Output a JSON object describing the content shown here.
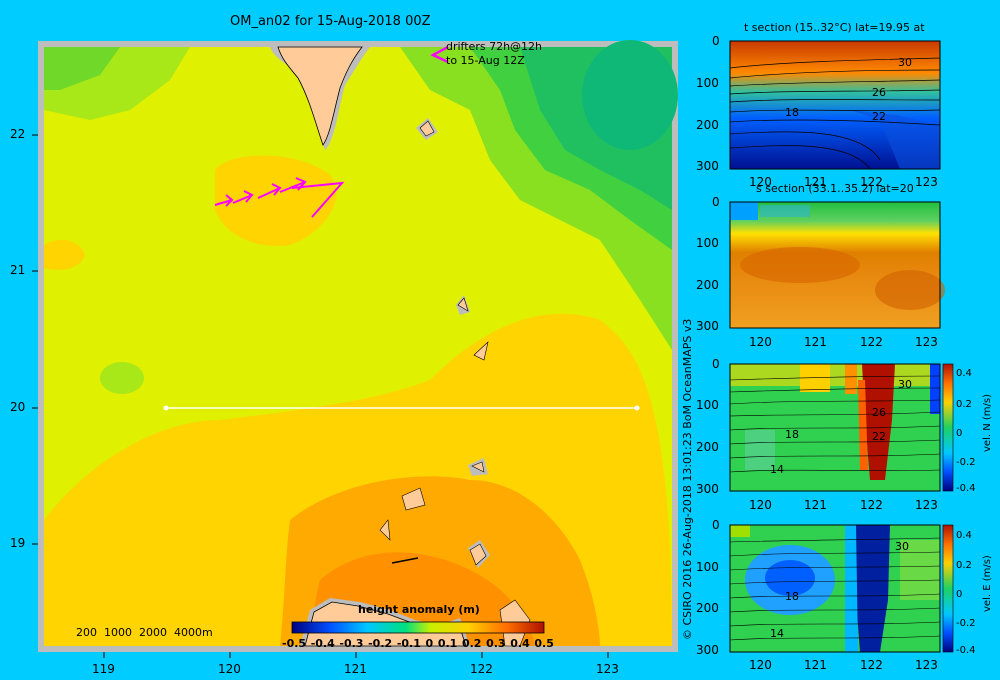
{
  "main_map": {
    "title": "OM_an02 for 15-Aug-2018 00Z",
    "drifters_label_line1": "drifters 72h@12h",
    "drifters_label_line2": "to 15-Aug 12Z",
    "depth_legend": "200  1000  2000  4000m",
    "colorbar_title": "height anomaly (m)",
    "colorbar_ticks": [
      "-0.5",
      "-0.4",
      "-0.3",
      "-0.2",
      "-0.1",
      "0",
      "0.1",
      "0.2",
      "0.3",
      "0.4",
      "0.5"
    ],
    "x_ticks": [
      "119",
      "120",
      "121",
      "122",
      "123"
    ],
    "y_ticks": [
      "22",
      "21",
      "20",
      "19"
    ],
    "section_lat": 20,
    "colors": {
      "background": "#00ccff",
      "frame": "#bdbdbd",
      "land": "#ffcc99",
      "drifters": "#ff00ff",
      "section_line": "#ffffff"
    }
  },
  "credit": "© CSIRO 2016   26-Aug-2018 13:01:23 BoM OceanMAPS v3",
  "panels": [
    {
      "title": "t section (15..32°C) lat=19.95 at",
      "y_ticks": [
        "0",
        "100",
        "200",
        "300"
      ],
      "x_ticks": [
        "120",
        "121",
        "122",
        "123"
      ],
      "contour_labels": [
        "30",
        "26",
        "18",
        "22"
      ],
      "colorbar": null
    },
    {
      "title": "s section (33.1..35.2) lat=20",
      "y_ticks": [
        "0",
        "100",
        "200",
        "300"
      ],
      "x_ticks": [
        "120",
        "121",
        "122",
        "123"
      ],
      "contour_labels": [],
      "colorbar": null
    },
    {
      "title": "",
      "y_ticks": [
        "0",
        "100",
        "200",
        "300"
      ],
      "x_ticks": [
        "120",
        "121",
        "122",
        "123"
      ],
      "contour_labels": [
        "30",
        "18",
        "26",
        "14",
        "22"
      ],
      "colorbar": {
        "label": "vel. N (m/s)",
        "ticks": [
          "0.4",
          "0.2",
          "0",
          "-0.2",
          "-0.4"
        ]
      }
    },
    {
      "title": "",
      "y_ticks": [
        "0",
        "100",
        "200",
        "300"
      ],
      "x_ticks": [
        "120",
        "121",
        "122",
        "123"
      ],
      "contour_labels": [
        "30",
        "18",
        "14"
      ],
      "colorbar": {
        "label": "vel. E (m/s)",
        "ticks": [
          "0.4",
          "0.2",
          "0",
          "-0.2",
          "-0.4"
        ]
      }
    }
  ]
}
